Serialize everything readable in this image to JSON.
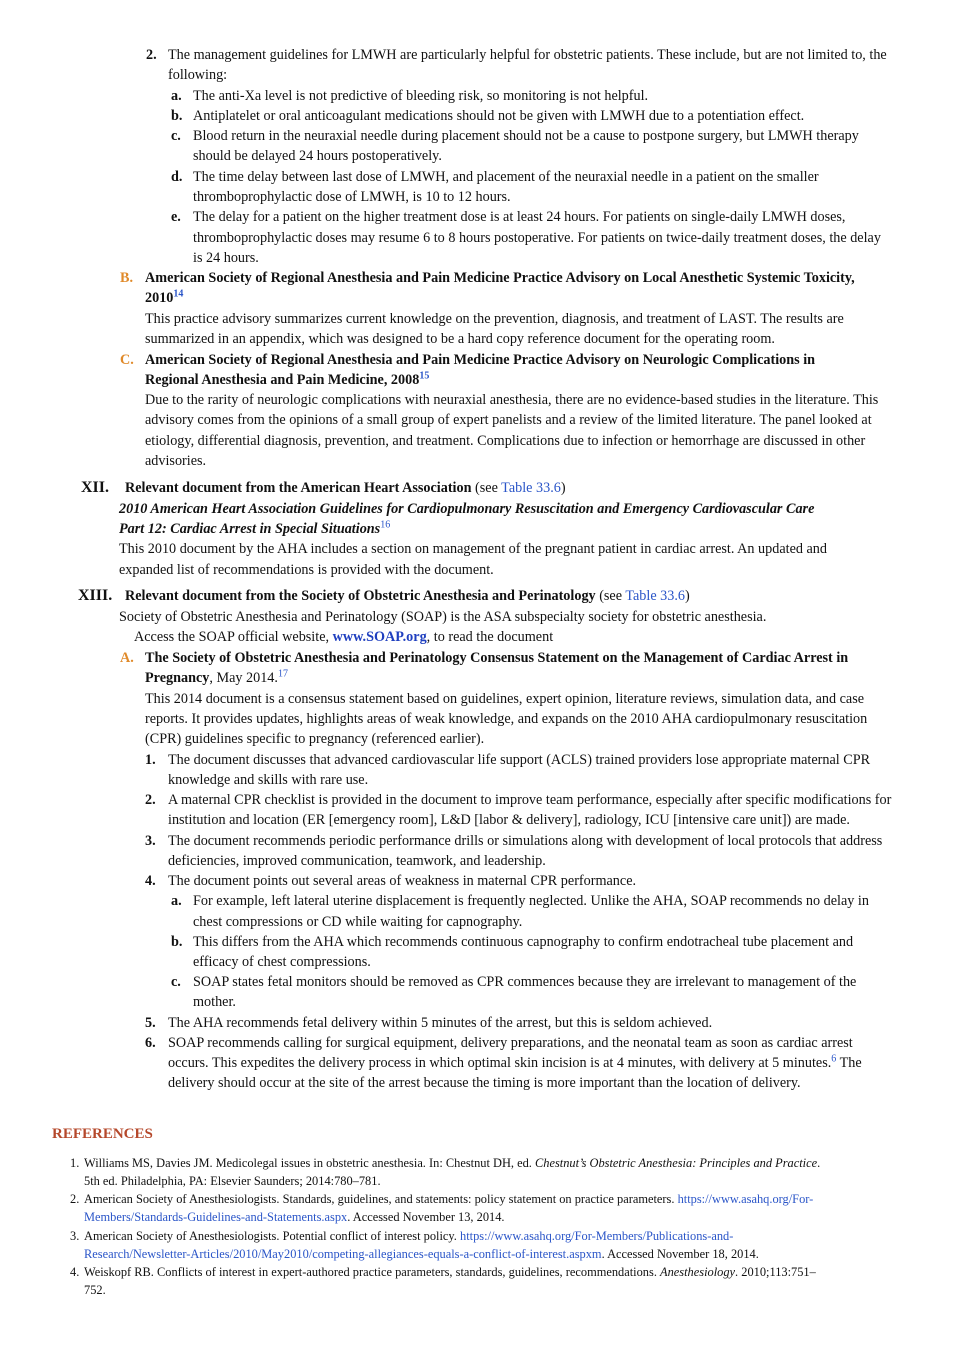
{
  "l01": {
    "n": "2.",
    "t": "The management guidelines for LMWH are particularly helpful for obstetric patients. These include, but are not limited to, the"
  },
  "l02": "following:",
  "l03": {
    "n": "a.",
    "t": "The anti-Xa level is not predictive of bleeding risk, so monitoring is not helpful."
  },
  "l04": {
    "n": "b.",
    "t": "Antiplatelet or oral anticoagulant medications should not be given with LMWH due to a potentiation effect."
  },
  "l05": {
    "n": "c.",
    "t": "Blood return in the neuraxial needle during placement should not be a cause to postpone surgery, but LMWH therapy"
  },
  "l06": "should be delayed 24 hours postoperatively.",
  "l07": {
    "n": "d.",
    "t": "The time delay between last dose of LMWH, and placement of the neuraxial needle in a patient on the smaller"
  },
  "l08": "thromboprophylactic dose of LMWH, is 10 to 12 hours.",
  "l09": {
    "n": "e.",
    "t": "The delay for a patient on the higher treatment dose is at least 24 hours. For patients on single-daily LMWH doses,"
  },
  "l10": "thromboprophylactic doses may resume 6 to 8 hours postoperative. For patients on twice-daily treatment doses, the delay",
  "l11": "is 24 hours.",
  "l12": {
    "n": "B.",
    "t": "American Society of Regional Anesthesia and Pain Medicine Practice Advisory on Local Anesthetic Systemic Toxicity,"
  },
  "l13": {
    "t": "2010",
    "sup": "14"
  },
  "l14": "This practice advisory summarizes current knowledge on the prevention, diagnosis, and treatment of LAST. The results are",
  "l15": "summarized in an appendix, which was designed to be a hard copy reference document for the operating room.",
  "l16": {
    "n": "C.",
    "t": "American Society of Regional Anesthesia and Pain Medicine Practice Advisory on Neurologic Complications in"
  },
  "l17": {
    "t": "Regional Anesthesia and Pain Medicine, 2008",
    "sup": "15"
  },
  "l18": "Due to the rarity of neurologic complications with neuraxial anesthesia, there are no evidence-based studies in the literature. This",
  "l19": "advisory comes from the opinions of a small group of expert panelists and a review of the limited literature. The panel looked at",
  "l20": "etiology, differential diagnosis, prevention, and treatment. Complications due to infection or hemorrhage are discussed in other",
  "l21": "advisories.",
  "l22": {
    "n": "XII.",
    "t": "Relevant document from the American Heart Association",
    "pre": " (see ",
    "link": "Table 33.6",
    "post": ")"
  },
  "l23": "2010 American Heart Association Guidelines for Cardiopulmonary Resuscitation and Emergency Cardiovascular Care",
  "l24": {
    "t": "Part 12: Cardiac Arrest in Special Situations",
    "sup": "16"
  },
  "l25": "This 2010 document by the AHA includes a section on management of the pregnant patient in cardiac arrest. An updated and",
  "l26": "expanded list of recommendations is provided with the document.",
  "l27": {
    "n": "XIII.",
    "t": "Relevant document from the Society of Obstetric Anesthesia and Perinatology",
    "pre": " (see ",
    "link": "Table 33.6",
    "post": ")"
  },
  "l28": "Society of Obstetric Anesthesia and Perinatology (SOAP) is the ASA subspecialty society for obstetric anesthesia.",
  "l29": {
    "pre": "Access the SOAP official website, ",
    "link": "www.SOAP.org",
    "post": ", to read the document"
  },
  "l30": {
    "n": "A.",
    "t": "The Society of Obstetric Anesthesia and Perinatology Consensus Statement on the Management of Cardiac Arrest in"
  },
  "l31": {
    "t": "Pregnancy",
    "post": ", May 2014.",
    "sup": "17"
  },
  "l32": "This 2014 document is a consensus statement based on guidelines, expert opinion, literature reviews, simulation data, and case",
  "l33": "reports. It provides updates, highlights areas of weak knowledge, and expands on the 2010 AHA cardiopulmonary resuscitation",
  "l34": "(CPR) guidelines specific to pregnancy (referenced earlier).",
  "l35": {
    "n": "1.",
    "t": "The document discusses that advanced cardiovascular life support (ACLS) trained providers lose appropriate maternal CPR"
  },
  "l36": "knowledge and skills with rare use.",
  "l37": {
    "n": "2.",
    "t": "A maternal CPR checklist is provided in the document to improve team performance, especially after specific modifications for"
  },
  "l38": "institution and location (ER [emergency room], L&D [labor & delivery], radiology, ICU [intensive care unit]) are made.",
  "l39": {
    "n": "3.",
    "t": "The document recommends periodic performance drills or simulations along with development of local protocols that address"
  },
  "l40": "deficiencies, improved communication, teamwork, and leadership.",
  "l41": {
    "n": "4.",
    "t": "The document points out several areas of weakness in maternal CPR performance."
  },
  "l42": {
    "n": "a.",
    "t": "For example, left lateral uterine displacement is frequently neglected. Unlike the AHA, SOAP recommends no delay in"
  },
  "l43": "chest compressions or CD while waiting for capnography.",
  "l44": {
    "n": "b.",
    "t": "This differs from the AHA which recommends continuous capnography to confirm endotracheal tube placement and"
  },
  "l45": "efficacy of chest compressions.",
  "l46": {
    "n": "c.",
    "t": "SOAP states fetal monitors should be removed as CPR commences because they are irrelevant to management of the"
  },
  "l47": "mother.",
  "l48": {
    "n": "5.",
    "t": "The AHA recommends fetal delivery within 5 minutes of the arrest, but this is seldom achieved."
  },
  "l49": {
    "n": "6.",
    "t": "SOAP recommends calling for surgical equipment, delivery preparations, and the neonatal team as soon as cardiac arrest"
  },
  "l50": {
    "t": "occurs. This expedites the delivery process in which optimal skin incision is at 4 minutes, with delivery at 5 minutes.",
    "sup": "6",
    "post": " The"
  },
  "l51": "delivery should occur at the site of the arrest because the timing is more important than the location of delivery.",
  "references": {
    "heading": "REFERENCES",
    "r1a": {
      "n": "1.",
      "t": "Williams MS, Davies JM. Medicolegal issues in obstetric anesthesia. In: Chestnut DH, ed. ",
      "i": "Chestnut’s Obstetric Anesthesia: Principles and Practice",
      "post": "."
    },
    "r1b": "5th ed. Philadelphia, PA: Elsevier Saunders; 2014:780–781.",
    "r2a": {
      "n": "2.",
      "t": "American Society of Anesthesiologists. Standards, guidelines, and statements: policy statement on practice parameters. ",
      "link": "https://www.asahq.org/For-"
    },
    "r2b": {
      "link": "Members/Standards-Guidelines-and-Statements.aspx",
      "post": ". Accessed November 13, 2014."
    },
    "r3a": {
      "n": "3.",
      "t": "American Society of Anesthesiologists. Potential conflict of interest policy. ",
      "link": "https://www.asahq.org/For-Members/Publications-and-"
    },
    "r3b": {
      "link": "Research/Newsletter-Articles/2010/May2010/competing-allegiances-equals-a-conflict-of-interest.aspxm",
      "post": ". Accessed November 18, 2014."
    },
    "r4a": {
      "n": "4.",
      "t": "Weiskopf RB. Conflicts of interest in expert-authored practice parameters, standards, guidelines, recommendations. ",
      "i": "Anesthesiology",
      "post": ". 2010;113:751–"
    },
    "r4b": "752."
  }
}
